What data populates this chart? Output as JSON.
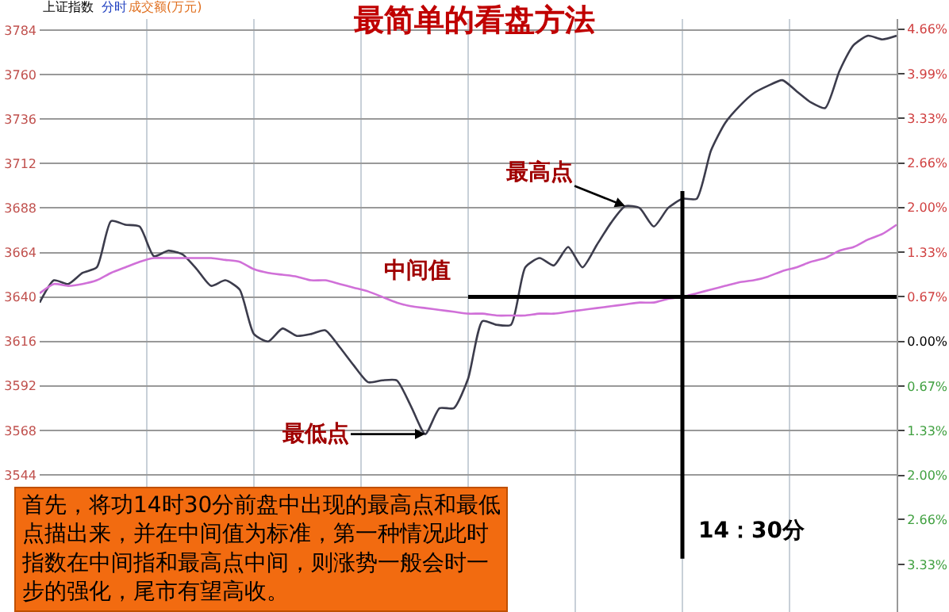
{
  "chart_data": {
    "type": "line",
    "title": "最简单的看盘方法",
    "categories": [
      null,
      null,
      null,
      null,
      null,
      null,
      null,
      null,
      null,
      null,
      null,
      null,
      null,
      null,
      null,
      null,
      null,
      null,
      null,
      null,
      null,
      null,
      null,
      null,
      null,
      null,
      null,
      null,
      null,
      null,
      null,
      null,
      null,
      null,
      null,
      null,
      null,
      null,
      null,
      null,
      null,
      null,
      null,
      null,
      null,
      null,
      null,
      null,
      null,
      null,
      null,
      null,
      null,
      null,
      null,
      null,
      null,
      null,
      null,
      null,
      null
    ],
    "series": [
      {
        "color": "#3c3c4c",
        "values": [
          3637,
          3649,
          3647,
          3653,
          3656,
          3681,
          3679,
          3678,
          3662,
          3665,
          3663,
          3655,
          3646,
          3649,
          3644,
          3620,
          3616,
          3623,
          3619,
          3620,
          3622,
          3613,
          3603,
          3594,
          3595,
          3595,
          3581,
          3566,
          3580,
          3580,
          3596,
          3627,
          3625,
          3625,
          3656,
          3661,
          3657,
          3667,
          3656,
          3668,
          3680,
          3689,
          3688,
          3678,
          3688,
          3693,
          3693,
          3719,
          3734,
          3743,
          3750,
          3754,
          3757,
          3751,
          3745,
          3742,
          3762,
          3776,
          3781,
          3779,
          3781
        ]
      },
      {
        "color": "#d070d8",
        "values": [
          3642,
          3647,
          3646,
          3647,
          3649,
          3653,
          3656,
          3659,
          3661,
          3661,
          3661,
          3661,
          3661,
          3660,
          3659,
          3655,
          3653,
          3652,
          3651,
          3649,
          3649,
          3647,
          3645,
          3643,
          3640,
          3637,
          3635,
          3634,
          3633,
          3632,
          3631,
          3631,
          3630,
          3630,
          3630,
          3631,
          3631,
          3632,
          3633,
          3634,
          3635,
          3636,
          3637,
          3637,
          3639,
          3640,
          3642,
          3644,
          3646,
          3648,
          3649,
          3651,
          3654,
          3656,
          3659,
          3661,
          3665,
          3667,
          3671,
          3674,
          3679
        ]
      }
    ],
    "ylim": [
      3470,
      3790
    ],
    "yticks": [
      3784,
      3760,
      3736,
      3712,
      3688,
      3664,
      3640,
      3616,
      3592,
      3568,
      3544
    ],
    "y2lim": [
      -4.04,
      4.81
    ],
    "y2ticks": [
      {
        "value": 4.66,
        "label": "4.66%"
      },
      {
        "value": 3.99,
        "label": "3.99%"
      },
      {
        "value": 3.33,
        "label": "3.33%"
      },
      {
        "value": 2.66,
        "label": "2.66%"
      },
      {
        "value": 2.0,
        "label": "2.00%"
      },
      {
        "value": 1.33,
        "label": "1.33%"
      },
      {
        "value": 0.67,
        "label": "0.67%"
      },
      {
        "value": 0,
        "label": "0.00%"
      },
      {
        "value": -0.67,
        "label": "0.67%"
      },
      {
        "value": -1.33,
        "label": "1.33%"
      },
      {
        "value": -2.0,
        "label": "2.00%"
      },
      {
        "value": -2.66,
        "label": "2.66%"
      },
      {
        "value": -3.33,
        "label": "3.33%"
      }
    ],
    "grid": true,
    "ref_lines": [
      {
        "axis": "y",
        "value": 3640,
        "label": "中间值",
        "color": "#000000"
      }
    ],
    "annotations": [
      "上证指数",
      "分时",
      "成交额(万元)",
      "最高点",
      "最低点",
      "首先，将功14时30分前盘中出现的最高点和最低点描出来，并在中间值为标准，第一种情况此时指数在中间指和最高点中间，则涨势一般会时一步的强化，尾市有望高收。",
      "14：30分"
    ]
  }
}
